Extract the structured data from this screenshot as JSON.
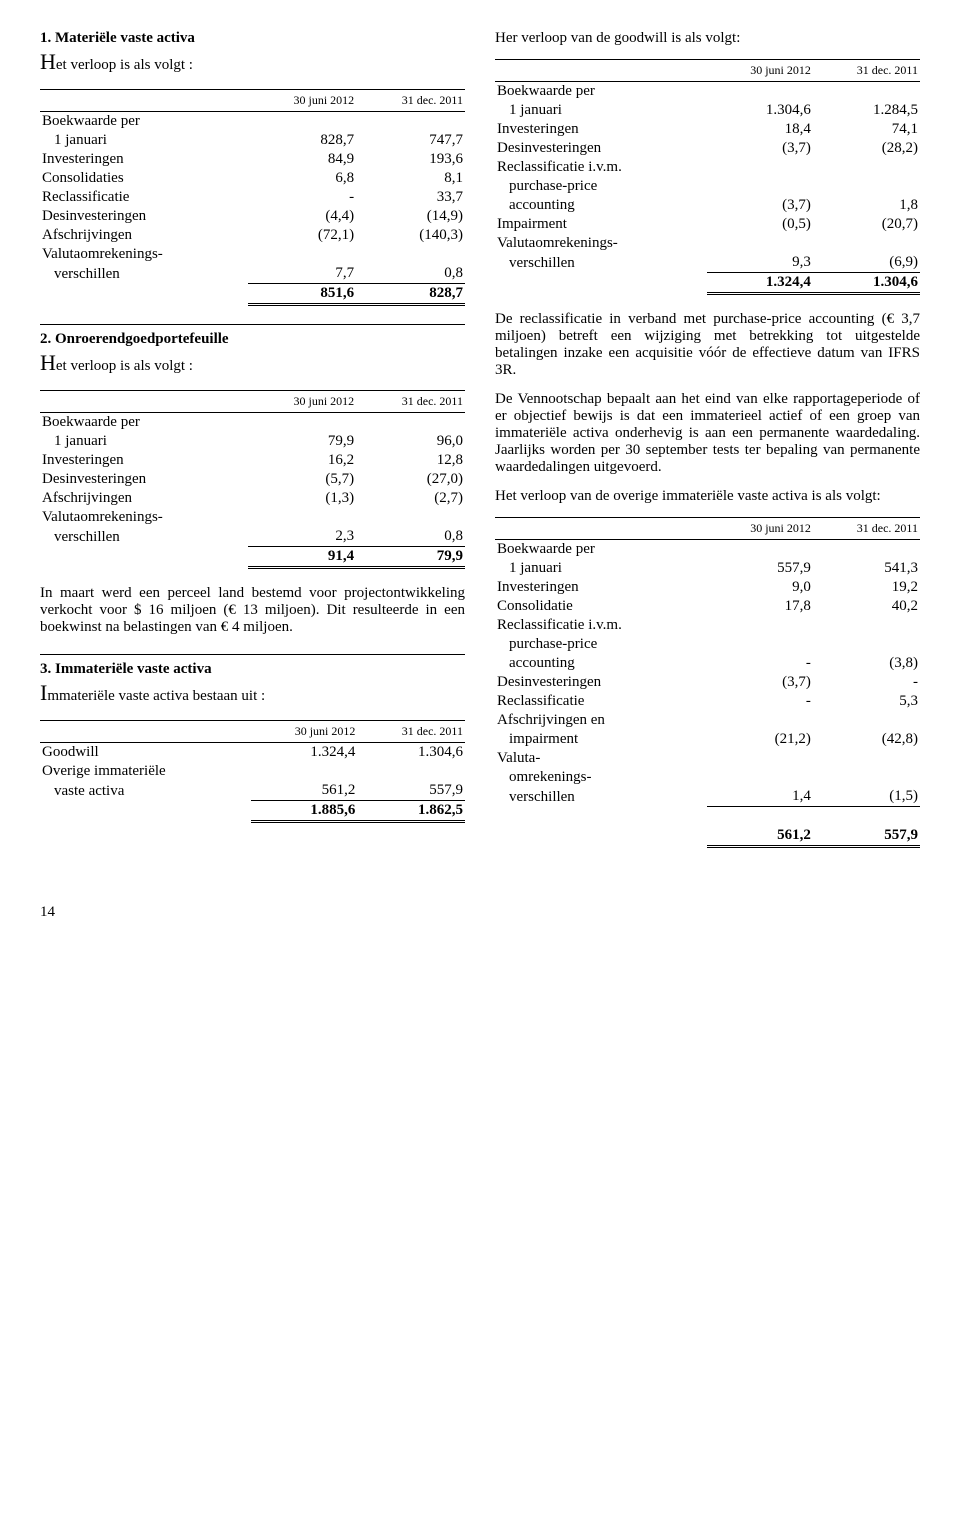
{
  "left": {
    "s1": {
      "title": "1. Materiële vaste activa",
      "intro_drop": "H",
      "intro_rest": "et verloop is als volgt :",
      "hdr1": "30 juni 2012",
      "hdr2": "31 dec. 2011",
      "r0": "Boekwaarde per",
      "r0b": "1 januari",
      "v0a": "828,7",
      "v0b": "747,7",
      "r1": "Investeringen",
      "v1a": "84,9",
      "v1b": "193,6",
      "r2": "Consolidaties",
      "v2a": "6,8",
      "v2b": "8,1",
      "r3": "Reclassificatie",
      "v3a": "-",
      "v3b": "33,7",
      "r4": "Desinvesteringen",
      "v4a": "(4,4)",
      "v4b": "(14,9)",
      "r5": "Afschrijvingen",
      "v5a": "(72,1)",
      "v5b": "(140,3)",
      "r6": "Valutaomrekenings-",
      "r6b": "verschillen",
      "v6a": "7,7",
      "v6b": "0,8",
      "t_a": "851,6",
      "t_b": "828,7"
    },
    "s2": {
      "title": "2. Onroerendgoedportefeuille",
      "intro_drop": "H",
      "intro_rest": "et verloop is als volgt :",
      "hdr1": "30 juni 2012",
      "hdr2": "31 dec. 2011",
      "r0": "Boekwaarde per",
      "r0b": "1 januari",
      "v0a": "79,9",
      "v0b": "96,0",
      "r1": "Investeringen",
      "v1a": "16,2",
      "v1b": "12,8",
      "r2": "Desinvesteringen",
      "v2a": "(5,7)",
      "v2b": "(27,0)",
      "r3": "Afschrijvingen",
      "v3a": "(1,3)",
      "v3b": "(2,7)",
      "r4": "Valutaomrekenings-",
      "r4b": "verschillen",
      "v4a": "2,3",
      "v4b": "0,8",
      "t_a": "91,4",
      "t_b": "79,9",
      "para": "In maart werd een perceel land bestemd voor projectontwikkeling verkocht voor $ 16 miljoen (€ 13 miljoen). Dit resulteerde in een boekwinst na belastingen van € 4 miljoen."
    },
    "s3": {
      "title": "3. Immateriële vaste activa",
      "intro_drop": "I",
      "intro_rest": "mmateriële vaste activa bestaan uit :",
      "hdr1": "30 juni 2012",
      "hdr2": "31 dec. 2011",
      "r1": "Goodwill",
      "v1a": "1.324,4",
      "v1b": "1.304,6",
      "r2": "Overige immateriële",
      "r2b": "vaste activa",
      "v2a": "561,2",
      "v2b": "557,9",
      "t_a": "1.885,6",
      "t_b": "1.862,5"
    }
  },
  "right": {
    "intro": "Her verloop van de goodwill is als volgt:",
    "t1": {
      "hdr1": "30 juni 2012",
      "hdr2": "31 dec. 2011",
      "r0": "Boekwaarde per",
      "r0b": "1 januari",
      "v0a": "1.304,6",
      "v0b": "1.284,5",
      "r1": "Investeringen",
      "v1a": "18,4",
      "v1b": "74,1",
      "r2": "Desinvesteringen",
      "v2a": "(3,7)",
      "v2b": "(28,2)",
      "r3a": "Reclassificatie i.v.m.",
      "r3b": "purchase-price",
      "r3c": "accounting",
      "v3a": "(3,7)",
      "v3b": "1,8",
      "r4": "Impairment",
      "v4a": "(0,5)",
      "v4b": "(20,7)",
      "r5": "Valutaomrekenings-",
      "r5b": "verschillen",
      "v5a": "9,3",
      "v5b": "(6,9)",
      "t_a": "1.324,4",
      "t_b": "1.304,6"
    },
    "para1": "De reclassificatie in verband met purchase-price accounting (€ 3,7 miljoen) betreft een wijziging met betrekking tot uitgestelde betalingen inzake een acquisitie vóór de effectieve datum van IFRS 3R.",
    "para2": "De Vennootschap bepaalt aan het eind van elke rapportageperiode of er objectief bewijs is dat een immaterieel actief of een groep van immateriële activa onderhevig is aan een permanente waardedaling. Jaarlijks worden per 30 september tests ter bepaling van permanente waardedalingen uitgevoerd.",
    "para3": "Het verloop van de overige immateriële vaste activa is als volgt:",
    "t2": {
      "hdr1": "30 juni 2012",
      "hdr2": "31 dec. 2011",
      "r0": "Boekwaarde per",
      "r0b": "1 januari",
      "v0a": "557,9",
      "v0b": "541,3",
      "r1": "Investeringen",
      "v1a": "9,0",
      "v1b": "19,2",
      "r2": "Consolidatie",
      "v2a": "17,8",
      "v2b": "40,2",
      "r3a": "Reclassificatie i.v.m.",
      "r3b": "purchase-price",
      "r3c": "accounting",
      "v3a": "-",
      "v3b": "(3,8)",
      "r4": "Desinvesteringen",
      "v4a": "(3,7)",
      "v4b": "-",
      "r5": "Reclassificatie",
      "v5a": "-",
      "v5b": "5,3",
      "r6a": "Afschrijvingen en",
      "r6b": "impairment",
      "v6a": "(21,2)",
      "v6b": "(42,8)",
      "r7a": "Valuta-",
      "r7b": "omrekenings-",
      "r7c": "verschillen",
      "v7a": "1,4",
      "v7b": "(1,5)",
      "t_a": "561,2",
      "t_b": "557,9"
    }
  },
  "pagenum": "14"
}
